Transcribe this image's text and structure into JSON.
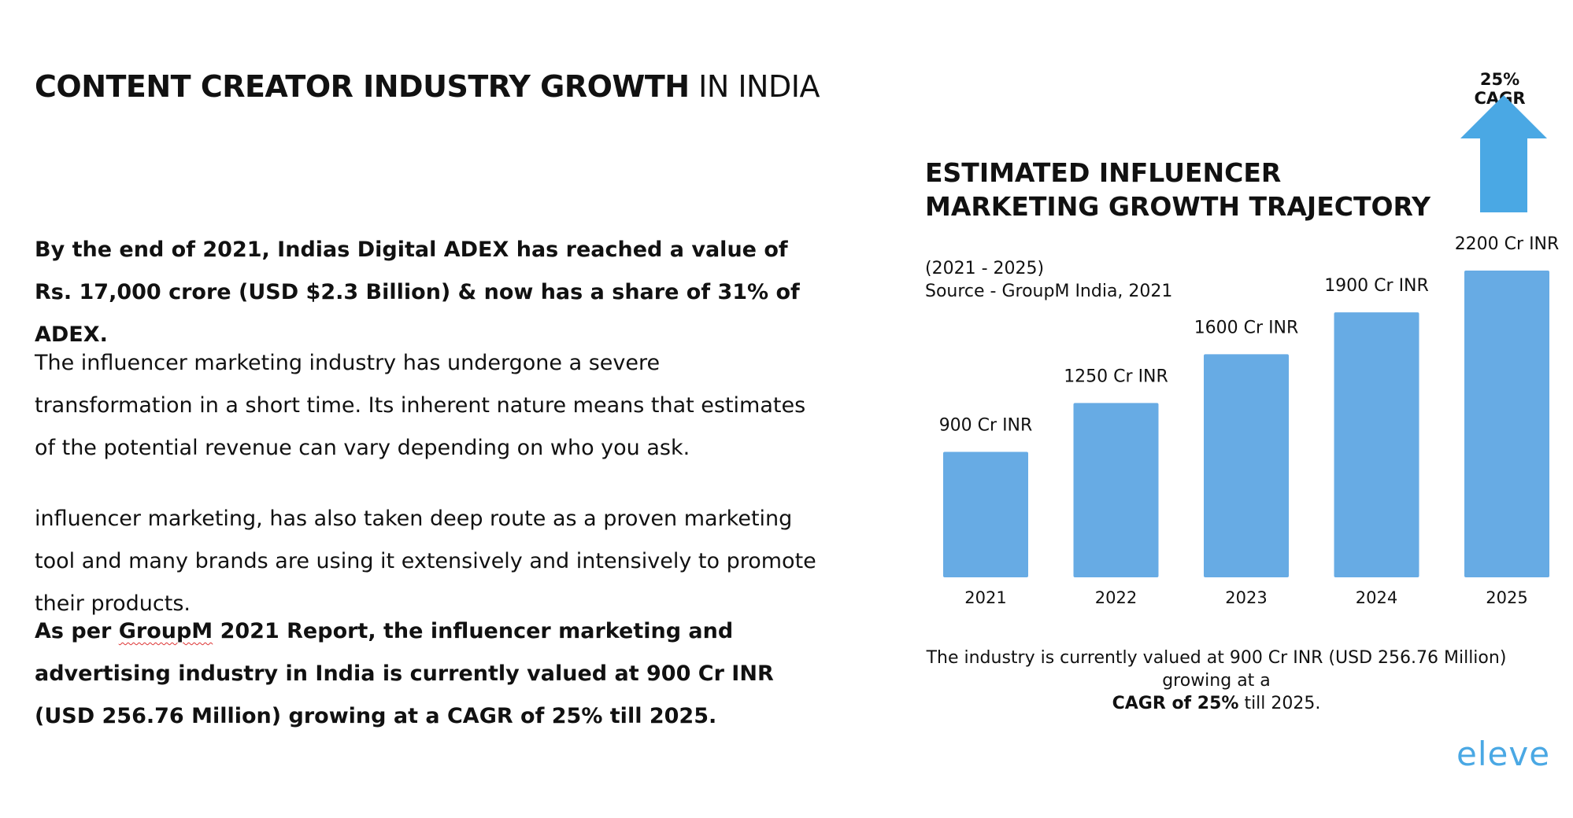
{
  "page": {
    "title_bold": "CONTENT CREATOR INDUSTRY GROWTH",
    "title_normal": " IN INDIA",
    "paragraphs": {
      "p1": "By the end of 2021, Indias Digital ADEX has reached a value of Rs. 17,000 crore (USD $2.3 Billion) & now has a share of 31% of ADEX.",
      "p2": "The influencer marketing industry has undergone a severe transformation in a short time. Its inherent nature means that estimates of the potential revenue can vary depending on who you ask.",
      "p3": "influencer marketing, has also taken deep route as a proven marketing tool and many brands are using it extensively and intensively to promote their products.",
      "p4_before": "As per ",
      "p4_underlined": "GroupM",
      "p4_after": " 2021 Report, the influencer marketing and advertising industry in India is currently valued at 900 Cr INR (USD 256.76 Million) growing at a CAGR of 25% till 2025."
    },
    "caption_normal": "The industry is currently valued at 900 Cr INR (USD 256.76 Million) growing at a",
    "caption_bold": "CAGR of 25%",
    "caption_end": " till 2025.",
    "logo_text": "eleve",
    "cagr_label": "25% CAGR"
  },
  "colors": {
    "bar": "#67abe4",
    "arrow": "#4aa8e4",
    "logo": "#4aa8e4"
  },
  "chart_data": {
    "type": "bar",
    "title_line1": "ESTIMATED INFLUENCER",
    "title_line2": "MARKETING GROWTH TRAJECTORY",
    "subtitle_line1": "(2021 - 2025)",
    "subtitle_line2": "Source - GroupM India, 2021",
    "categories": [
      "2021",
      "2022",
      "2023",
      "2024",
      "2025"
    ],
    "values": [
      900,
      1250,
      1600,
      1900,
      2200
    ],
    "data_labels": [
      "900 Cr INR",
      "1250 Cr INR",
      "1600 Cr INR",
      "1900 Cr INR",
      "2200 Cr INR"
    ],
    "unit": "Cr INR",
    "ylim": [
      0,
      2200
    ],
    "grid": false,
    "legend": "none"
  }
}
